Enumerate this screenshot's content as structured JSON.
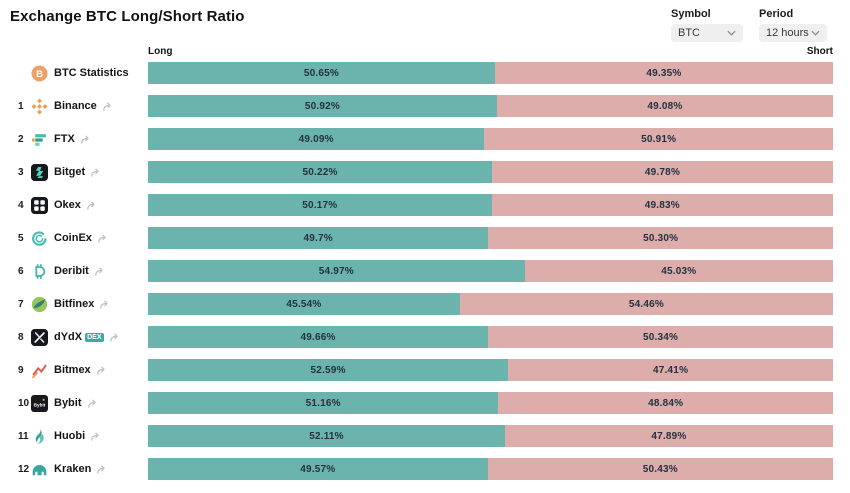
{
  "title": "Exchange BTC Long/Short Ratio",
  "controls": {
    "symbol": {
      "label": "Symbol",
      "value": "BTC"
    },
    "period": {
      "label": "Period",
      "value": "12 hours"
    }
  },
  "column_headers": {
    "long": "Long",
    "short": "Short"
  },
  "colors": {
    "long_bar": "#6bb4ad",
    "short_bar": "#dcadab",
    "bar_text": "#23313f",
    "badge": "#3cab9e"
  },
  "chart_data": {
    "type": "bar",
    "subtype": "horizontal-stacked-percentage",
    "title": "Exchange BTC Long/Short Ratio",
    "unit": "%",
    "xlim": [
      0,
      100
    ],
    "legend": [
      "Long",
      "Short"
    ],
    "categories": [
      "BTC Statistics",
      "Binance",
      "FTX",
      "Bitget",
      "Okex",
      "CoinEx",
      "Deribit",
      "Bitfinex",
      "dYdX",
      "Bitmex",
      "Bybit",
      "Huobi",
      "Kraken"
    ],
    "series": [
      {
        "name": "Long",
        "values": [
          50.65,
          50.92,
          49.09,
          50.22,
          50.17,
          49.7,
          54.97,
          45.54,
          49.66,
          52.59,
          51.16,
          52.11,
          49.57
        ]
      },
      {
        "name": "Short",
        "values": [
          49.35,
          49.08,
          50.91,
          49.78,
          49.83,
          50.3,
          45.03,
          54.46,
          50.34,
          47.41,
          48.84,
          47.89,
          50.43
        ]
      }
    ]
  },
  "rows": [
    {
      "rank": "",
      "name": "BTC Statistics",
      "icon": "btc-statistics-icon",
      "badge": "",
      "link": false,
      "long_pct": 50.65,
      "long_label": "50.65%",
      "short_label": "49.35%"
    },
    {
      "rank": "1",
      "name": "Binance",
      "icon": "binance-icon",
      "badge": "",
      "link": true,
      "long_pct": 50.92,
      "long_label": "50.92%",
      "short_label": "49.08%"
    },
    {
      "rank": "2",
      "name": "FTX",
      "icon": "ftx-icon",
      "badge": "",
      "link": true,
      "long_pct": 49.09,
      "long_label": "49.09%",
      "short_label": "50.91%"
    },
    {
      "rank": "3",
      "name": "Bitget",
      "icon": "bitget-icon",
      "badge": "",
      "link": true,
      "long_pct": 50.22,
      "long_label": "50.22%",
      "short_label": "49.78%"
    },
    {
      "rank": "4",
      "name": "Okex",
      "icon": "okex-icon",
      "badge": "",
      "link": true,
      "long_pct": 50.17,
      "long_label": "50.17%",
      "short_label": "49.83%"
    },
    {
      "rank": "5",
      "name": "CoinEx",
      "icon": "coinex-icon",
      "badge": "",
      "link": true,
      "long_pct": 49.7,
      "long_label": "49.7%",
      "short_label": "50.30%"
    },
    {
      "rank": "6",
      "name": "Deribit",
      "icon": "deribit-icon",
      "badge": "",
      "link": true,
      "long_pct": 54.97,
      "long_label": "54.97%",
      "short_label": "45.03%"
    },
    {
      "rank": "7",
      "name": "Bitfinex",
      "icon": "bitfinex-icon",
      "badge": "",
      "link": true,
      "long_pct": 45.54,
      "long_label": "45.54%",
      "short_label": "54.46%"
    },
    {
      "rank": "8",
      "name": "dYdX",
      "icon": "dydx-icon",
      "badge": "DEX",
      "link": true,
      "long_pct": 49.66,
      "long_label": "49.66%",
      "short_label": "50.34%"
    },
    {
      "rank": "9",
      "name": "Bitmex",
      "icon": "bitmex-icon",
      "badge": "",
      "link": true,
      "long_pct": 52.59,
      "long_label": "52.59%",
      "short_label": "47.41%"
    },
    {
      "rank": "10",
      "name": "Bybit",
      "icon": "bybit-icon",
      "badge": "",
      "link": true,
      "long_pct": 51.16,
      "long_label": "51.16%",
      "short_label": "48.84%"
    },
    {
      "rank": "11",
      "name": "Huobi",
      "icon": "huobi-icon",
      "badge": "",
      "link": true,
      "long_pct": 52.11,
      "long_label": "52.11%",
      "short_label": "47.89%"
    },
    {
      "rank": "12",
      "name": "Kraken",
      "icon": "kraken-icon",
      "badge": "",
      "link": true,
      "long_pct": 49.57,
      "long_label": "49.57%",
      "short_label": "50.43%"
    }
  ]
}
